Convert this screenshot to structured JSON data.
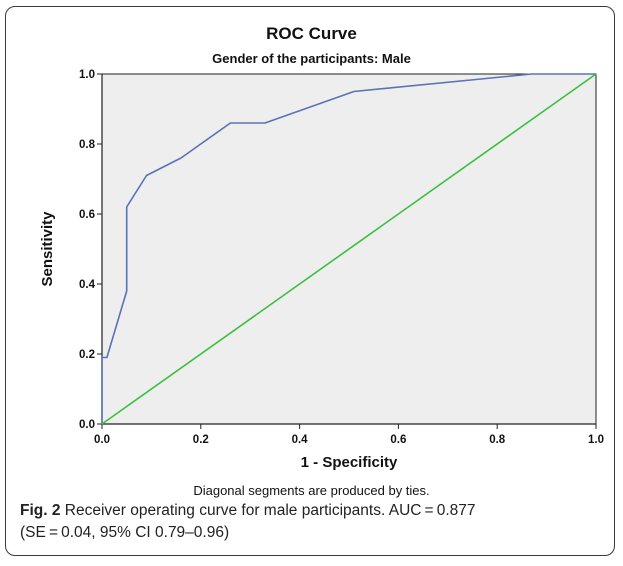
{
  "chart_data": {
    "type": "line",
    "title": "ROC Curve",
    "subtitle": "Gender of the participants: Male",
    "xlabel": "1 - Specificity",
    "ylabel": "Sensitivity",
    "xlim": [
      0.0,
      1.0
    ],
    "ylim": [
      0.0,
      1.0
    ],
    "x_ticks": [
      "0.0",
      "0.2",
      "0.4",
      "0.6",
      "0.8",
      "1.0"
    ],
    "y_ticks": [
      "0.0",
      "0.2",
      "0.4",
      "0.6",
      "0.8",
      "1.0"
    ],
    "grid": false,
    "plot_background": "#eeeeee",
    "series": [
      {
        "color": "#5b72b8",
        "x": [
          0.0,
          0.0,
          0.01,
          0.05,
          0.05,
          0.09,
          0.16,
          0.26,
          0.33,
          0.51,
          0.87,
          1.0
        ],
        "y": [
          0.0,
          0.19,
          0.19,
          0.38,
          0.62,
          0.71,
          0.76,
          0.86,
          0.86,
          0.95,
          1.0,
          1.0
        ]
      },
      {
        "color": "#3cbf3c",
        "x": [
          0.0,
          1.0
        ],
        "y": [
          0.0,
          1.0
        ]
      }
    ],
    "note": "Diagonal segments are produced by ties."
  },
  "caption": {
    "label": "Fig. 2",
    "line1": "Receiver operating curve for male participants. AUC = 0.877",
    "line2": "(SE = 0.04, 95% CI 0.79–0.96)"
  }
}
